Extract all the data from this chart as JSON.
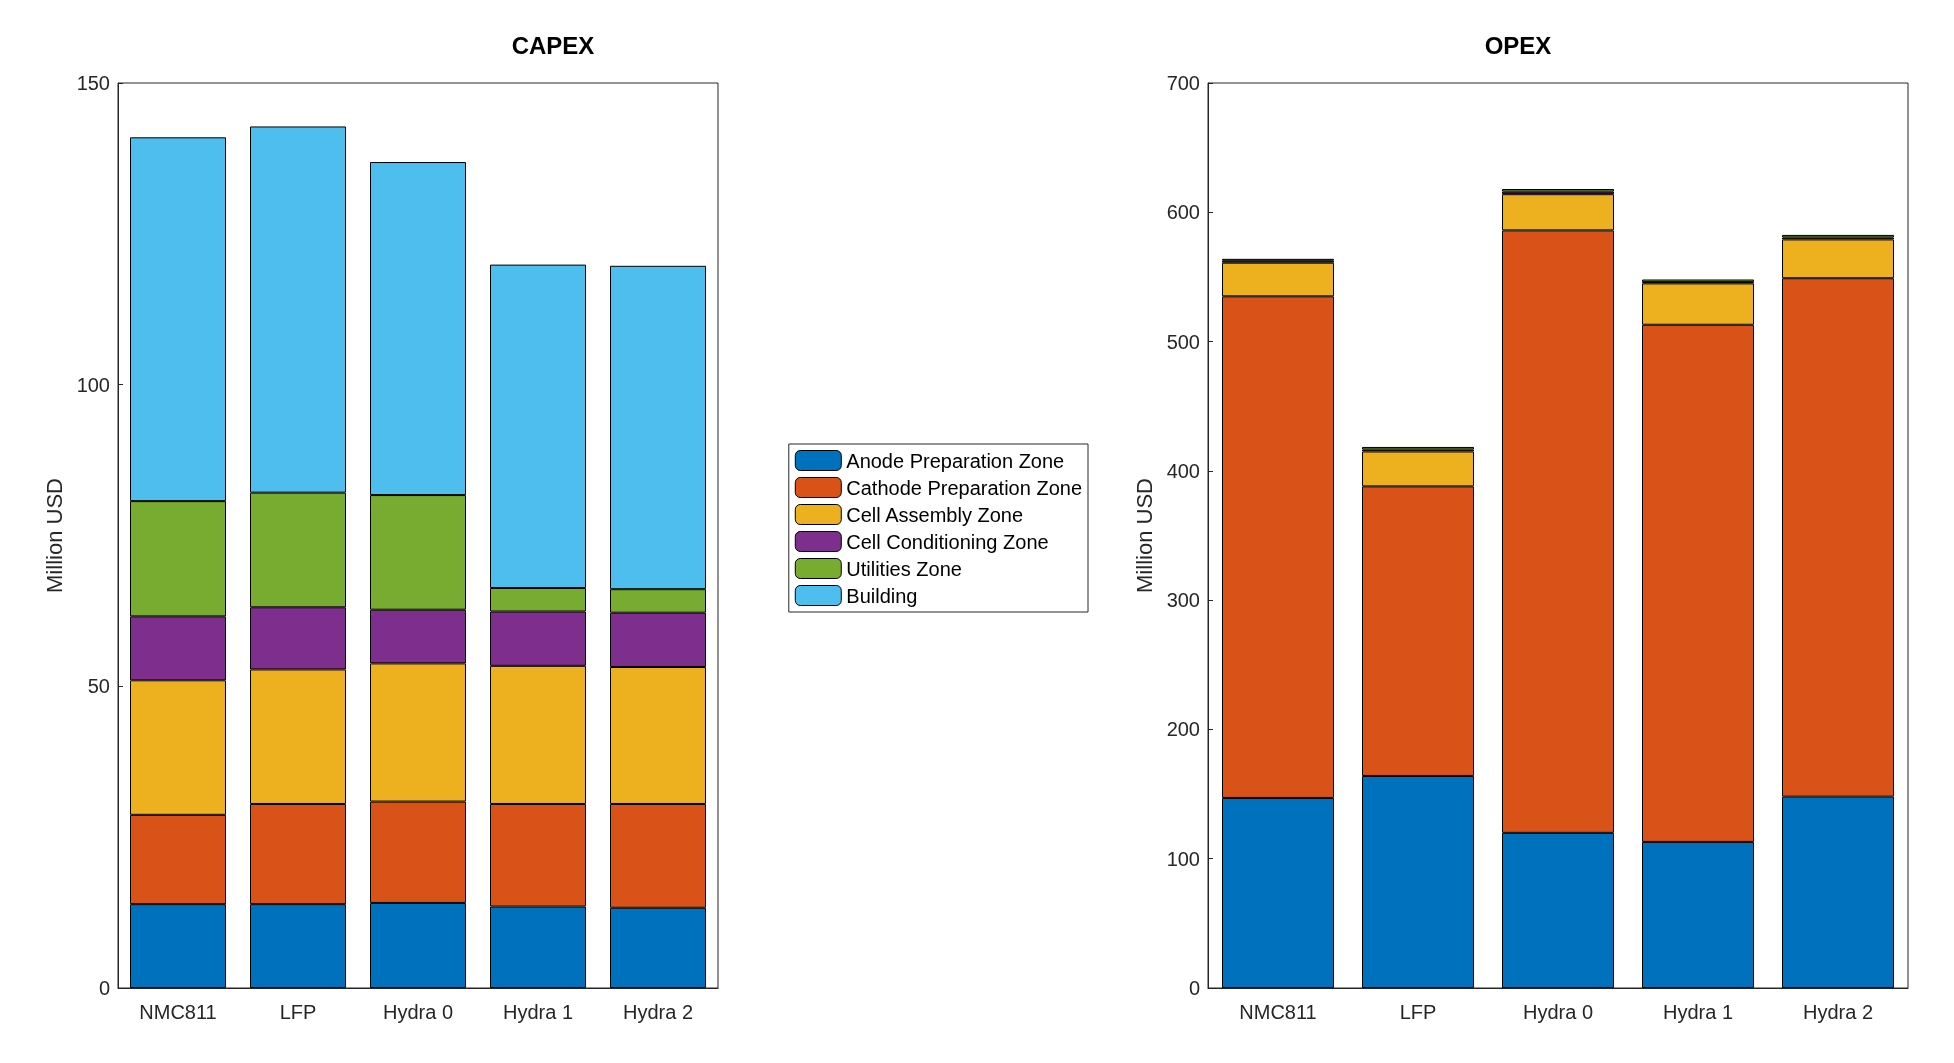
{
  "chart_data": [
    {
      "type": "bar",
      "title": "CAPEX",
      "ylabel": "Million USD",
      "stacked": true,
      "legend": "right",
      "categories": [
        "NMC811",
        "LFP",
        "Hydra 0",
        "Hydra 1",
        "Hydra 2"
      ],
      "ylim": [
        0,
        150
      ],
      "yticks": [
        0,
        50,
        100,
        150
      ],
      "series": [
        {
          "name": "Anode Preparation Zone",
          "color": "#0072bd",
          "values": [
            13.9,
            13.9,
            14.1,
            13.5,
            13.3
          ]
        },
        {
          "name": "Cathode Preparation Zone",
          "color": "#d95319",
          "values": [
            14.8,
            16.6,
            16.8,
            17.0,
            17.2
          ]
        },
        {
          "name": "Cell Assembly Zone",
          "color": "#edb120",
          "values": [
            22.3,
            22.3,
            22.9,
            22.9,
            22.7
          ]
        },
        {
          "name": "Cell Conditioning Zone",
          "color": "#7e2f8e",
          "values": [
            10.6,
            10.3,
            8.9,
            9.0,
            9.0
          ]
        },
        {
          "name": "Utilities Zone",
          "color": "#77ac30",
          "values": [
            19.1,
            19.0,
            19.0,
            3.9,
            3.9
          ]
        },
        {
          "name": "Building",
          "color": "#4dbeee",
          "values": [
            60.3,
            60.7,
            55.2,
            53.6,
            53.6
          ]
        }
      ]
    },
    {
      "type": "bar",
      "title": "OPEX",
      "ylabel": "Million USD",
      "stacked": true,
      "categories": [
        "NMC811",
        "LFP",
        "Hydra 0",
        "Hydra 1",
        "Hydra 2"
      ],
      "ylim": [
        0,
        700
      ],
      "yticks": [
        0,
        100,
        200,
        300,
        400,
        500,
        600,
        700
      ],
      "series": [
        {
          "color": "#0072bd",
          "values": [
            147,
            164,
            120,
            113,
            148
          ]
        },
        {
          "color": "#d95319",
          "values": [
            388,
            224,
            466,
            400,
            401
          ]
        },
        {
          "color": "#edb120",
          "values": [
            26,
            27,
            28,
            32,
            30
          ]
        },
        {
          "color": "#7e2f8e",
          "values": [
            1.5,
            1.5,
            2,
            1,
            1.5
          ]
        },
        {
          "color": "#77ac30",
          "values": [
            1.5,
            2,
            2,
            2,
            2
          ]
        }
      ]
    }
  ]
}
